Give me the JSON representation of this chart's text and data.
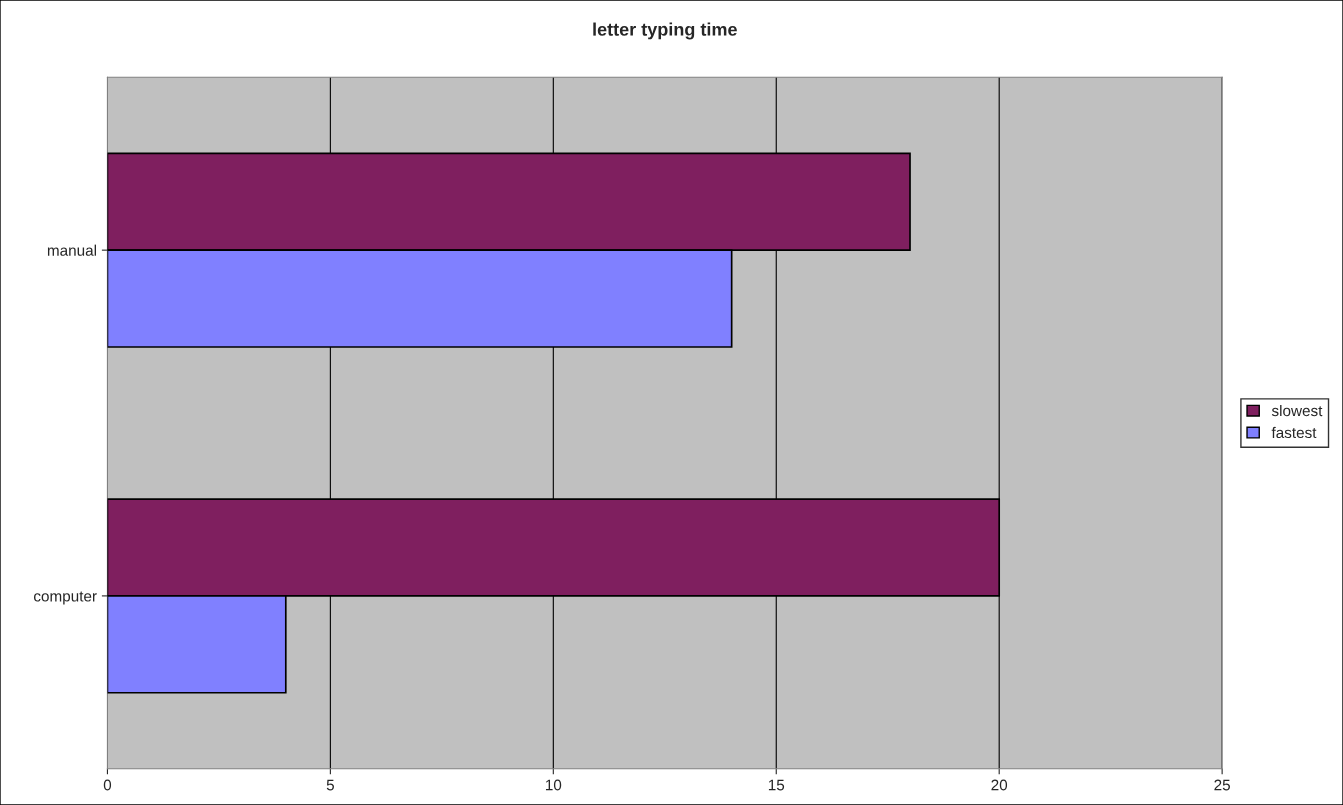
{
  "chart_data": {
    "type": "bar",
    "orientation": "horizontal",
    "title": "letter typing time",
    "categories": [
      "manual",
      "computer"
    ],
    "series": [
      {
        "name": "slowest",
        "color": "#7f1f5f",
        "values": [
          18,
          20
        ]
      },
      {
        "name": "fastest",
        "color": "#8080ff",
        "values": [
          14,
          4
        ]
      }
    ],
    "xlim": [
      0,
      25
    ],
    "xticks": [
      0,
      5,
      10,
      15,
      20,
      25
    ],
    "grid": "x",
    "legend": "right"
  }
}
